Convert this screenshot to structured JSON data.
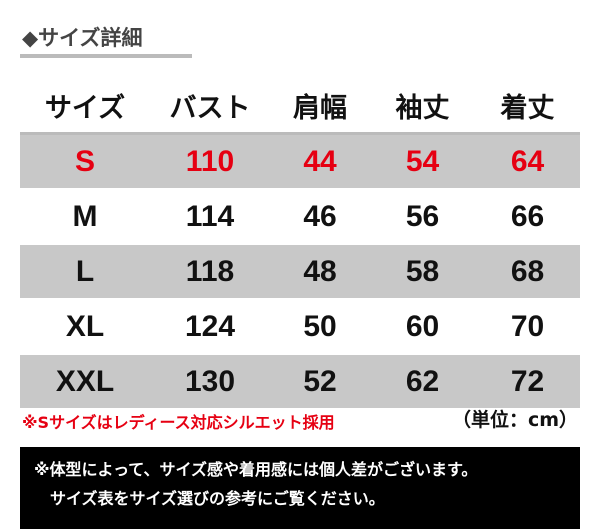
{
  "title": "◆サイズ詳細",
  "headers": [
    "サイズ",
    "バスト",
    "肩幅",
    "袖丈",
    "着丈"
  ],
  "rows": [
    {
      "size": "S",
      "bust": "110",
      "shoulder": "44",
      "sleeve": "54",
      "length": "64"
    },
    {
      "size": "M",
      "bust": "114",
      "shoulder": "46",
      "sleeve": "56",
      "length": "66"
    },
    {
      "size": "L",
      "bust": "118",
      "shoulder": "48",
      "sleeve": "58",
      "length": "68"
    },
    {
      "size": "XL",
      "bust": "124",
      "shoulder": "50",
      "sleeve": "60",
      "length": "70"
    },
    {
      "size": "XXL",
      "bust": "130",
      "shoulder": "52",
      "sleeve": "62",
      "length": "72"
    }
  ],
  "note": "※Sサイズはレディース対応シルエット採用",
  "unit": "（単位：cm）",
  "disclaimer": {
    "line1": "※体型によって、サイズ感や着用感には個人差がございます。",
    "line2": "サイズ表をサイズ選びの参考にご覧ください。"
  },
  "colors": {
    "highlight": "#e60012",
    "row_gray": "#c8c8c8"
  }
}
